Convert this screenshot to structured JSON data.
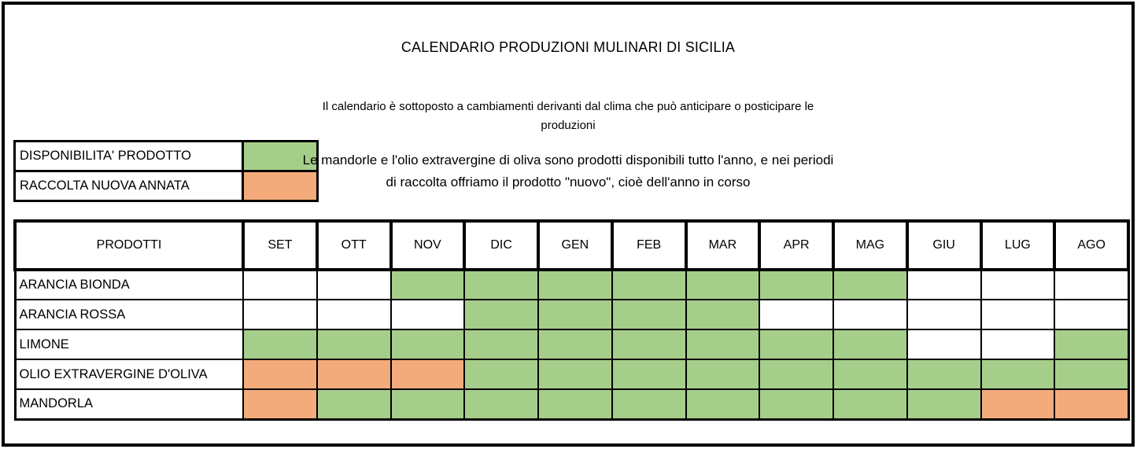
{
  "title": "CALENDARIO PRODUZIONI MULINARI DI SICILIA",
  "subtitle": "Il calendario è sottoposto a cambiamenti derivanti dal clima che può anticipare o posticipare le produzioni",
  "note": "Le mandorle e l'olio extravergine di oliva sono prodotti disponibili tutto l'anno, e nei periodi di raccolta offriamo il prodotto \"nuovo\", cioè dell'anno in corso",
  "colors": {
    "available": "#A6CE8B",
    "harvest": "#F4AB7B",
    "empty": "#FFFFFF",
    "border": "#000000"
  },
  "legend": {
    "items": [
      {
        "label": "DISPONIBILITA' PRODOTTO",
        "key": "available"
      },
      {
        "label": "RACCOLTA NUOVA ANNATA",
        "key": "harvest"
      }
    ]
  },
  "table": {
    "header": [
      "PRODOTTI",
      "SET",
      "OTT",
      "NOV",
      "DIC",
      "GEN",
      "FEB",
      "MAR",
      "APR",
      "MAG",
      "GIU",
      "LUG",
      "AGO"
    ],
    "rows": [
      {
        "product": "ARANCIA BIONDA",
        "cells": [
          "",
          "",
          "available",
          "available",
          "available",
          "available",
          "available",
          "available",
          "available",
          "",
          "",
          ""
        ]
      },
      {
        "product": "ARANCIA ROSSA",
        "cells": [
          "",
          "",
          "",
          "available",
          "available",
          "available",
          "available",
          "",
          "",
          "",
          "",
          ""
        ]
      },
      {
        "product": "LIMONE",
        "cells": [
          "available",
          "available",
          "available",
          "available",
          "available",
          "available",
          "available",
          "available",
          "available",
          "",
          "",
          "available"
        ]
      },
      {
        "product": "OLIO EXTRAVERGINE D'OLIVA",
        "cells": [
          "harvest",
          "harvest",
          "harvest",
          "available",
          "available",
          "available",
          "available",
          "available",
          "available",
          "available",
          "available",
          "available"
        ]
      },
      {
        "product": "MANDORLA",
        "cells": [
          "harvest",
          "available",
          "available",
          "available",
          "available",
          "available",
          "available",
          "available",
          "available",
          "available",
          "harvest",
          "harvest"
        ]
      }
    ]
  }
}
